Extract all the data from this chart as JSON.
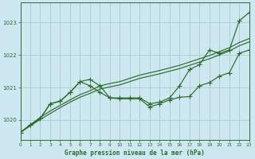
{
  "title": "Graphe pression niveau de la mer (hPa)",
  "bg_color": "#cde8f0",
  "plot_bg_color": "#cde8f0",
  "grid_color": "#aacccc",
  "line_color": "#2d6a2d",
  "xlim": [
    0,
    23
  ],
  "ylim": [
    1019.4,
    1023.6
  ],
  "yticks": [
    1020,
    1021,
    1022,
    1023
  ],
  "xticks": [
    0,
    1,
    2,
    3,
    4,
    5,
    6,
    7,
    8,
    9,
    10,
    11,
    12,
    13,
    14,
    15,
    16,
    17,
    18,
    19,
    20,
    21,
    22,
    23
  ],
  "y_upper_marker": [
    1019.62,
    1019.85,
    1020.05,
    1020.5,
    1020.58,
    1020.85,
    1021.18,
    1021.25,
    1021.05,
    1020.68,
    1020.68,
    1020.68,
    1020.68,
    1020.5,
    1020.55,
    1020.68,
    1021.05,
    1021.55,
    1021.7,
    1022.15,
    1022.05,
    1022.15,
    1023.05,
    1023.3
  ],
  "y_lower_marker": [
    1019.62,
    1019.85,
    1020.05,
    1020.5,
    1020.58,
    1020.85,
    1021.18,
    1021.05,
    1020.85,
    1020.68,
    1020.65,
    1020.65,
    1020.65,
    1020.4,
    1020.5,
    1020.62,
    1020.7,
    1020.72,
    1021.05,
    1021.15,
    1021.35,
    1021.45,
    1022.05,
    1022.15
  ],
  "y_trend1": [
    1019.62,
    1019.85,
    1020.08,
    1020.28,
    1020.45,
    1020.62,
    1020.78,
    1020.9,
    1021.05,
    1021.12,
    1021.18,
    1021.28,
    1021.38,
    1021.45,
    1021.52,
    1021.6,
    1021.68,
    1021.78,
    1021.88,
    1021.98,
    1022.1,
    1022.22,
    1022.38,
    1022.5
  ],
  "y_trend2": [
    1019.62,
    1019.82,
    1020.02,
    1020.2,
    1020.38,
    1020.55,
    1020.7,
    1020.82,
    1020.95,
    1021.02,
    1021.08,
    1021.18,
    1021.28,
    1021.35,
    1021.42,
    1021.5,
    1021.58,
    1021.68,
    1021.78,
    1021.88,
    1022.0,
    1022.12,
    1022.28,
    1022.4
  ]
}
